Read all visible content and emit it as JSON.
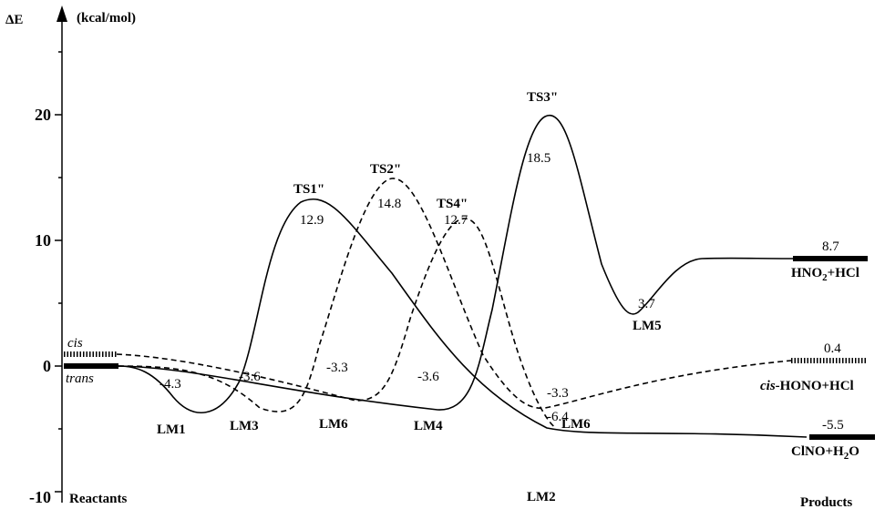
{
  "chart_data": {
    "type": "line",
    "ylabel_symbol": "ΔE",
    "ylabel_unit": "(kcal/mol)",
    "yticks": [
      20,
      10,
      0,
      -10
    ],
    "ylim": [
      -10,
      25
    ],
    "left_caption": "Reactants",
    "right_caption": "Products",
    "reactant_labels": {
      "cis": "cis",
      "trans": "trans"
    },
    "species": [
      {
        "id": "LM1",
        "label": "LM1",
        "energy": -4.3,
        "energy_label": "-4.3"
      },
      {
        "id": "LM3",
        "label": "LM3",
        "energy": -3.6,
        "energy_label": "-3.6"
      },
      {
        "id": "LM6a",
        "label": "LM6",
        "energy": -3.3,
        "energy_label": "-3.3"
      },
      {
        "id": "LM4",
        "label": "LM4",
        "energy": -3.6,
        "energy_label": "-3.6"
      },
      {
        "id": "LM2",
        "label": "LM2",
        "energy": -6.4,
        "energy_label": "-6.4"
      },
      {
        "id": "LM6b",
        "label": "LM6",
        "energy": -3.3,
        "energy_label": "-3.3"
      },
      {
        "id": "LM5",
        "label": "LM5",
        "energy": 3.7,
        "energy_label": "3.7"
      },
      {
        "id": "TS1",
        "label": "TS1\"",
        "energy": 12.9,
        "energy_label": "12.9"
      },
      {
        "id": "TS2",
        "label": "TS2\"",
        "energy": 14.8,
        "energy_label": "14.8"
      },
      {
        "id": "TS4",
        "label": "TS4\"",
        "energy": 12.7,
        "energy_label": "12.7"
      },
      {
        "id": "TS3",
        "label": "TS3\"",
        "energy": 18.5,
        "energy_label": "18.5"
      }
    ],
    "products": [
      {
        "id": "hno2",
        "name": "HNO₂+HCl",
        "energy": 8.7,
        "energy_label": "8.7",
        "style": "solid"
      },
      {
        "id": "cishono",
        "name": "cis-HONO+HCl",
        "name_prefix": "cis",
        "name_rest": "-HONO+HCl",
        "energy": 0.4,
        "energy_label": "0.4",
        "style": "hatched"
      },
      {
        "id": "clno",
        "name": "ClNO+H₂O",
        "energy": -5.5,
        "energy_label": "-5.5",
        "style": "solid"
      }
    ],
    "pathways": [
      {
        "name": "trans → LM1 → TS1\" → LM2 → ClNO+H₂O",
        "style": "solid",
        "energies": [
          0,
          -4.3,
          12.9,
          -6.4,
          -5.5
        ]
      },
      {
        "name": "trans → LM4 → TS3\" → LM5 → HNO₂+HCl",
        "style": "solid",
        "energies": [
          0,
          -3.6,
          18.5,
          3.7,
          8.7
        ]
      },
      {
        "name": "trans → LM3 → TS2\" → LM6 → cis-HONO+HCl",
        "style": "dashed",
        "energies": [
          0,
          -3.6,
          14.8,
          -3.3,
          0.4
        ]
      },
      {
        "name": "cis → LM6 → TS4\" → LM2",
        "style": "dashed",
        "energies": [
          0.4,
          -3.3,
          12.7,
          -6.4
        ]
      }
    ]
  }
}
